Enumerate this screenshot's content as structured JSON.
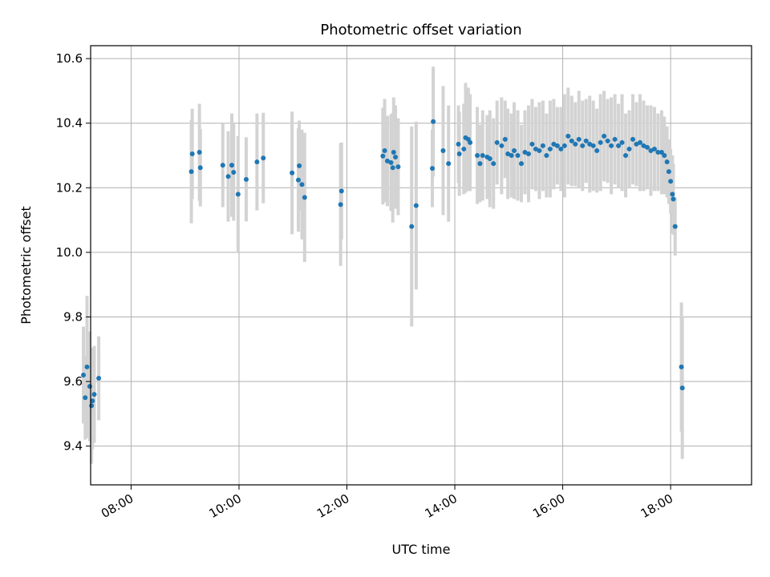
{
  "chart_data": {
    "type": "scatter",
    "title": "Photometric offset variation",
    "xlabel": "UTC time",
    "ylabel": "Photometric offset",
    "xlim": [
      "07:15",
      "19:30"
    ],
    "ylim": [
      9.28,
      10.64
    ],
    "x_ticks": [
      "08:00",
      "10:00",
      "12:00",
      "14:00",
      "16:00",
      "18:00"
    ],
    "y_ticks": [
      9.4,
      9.6,
      9.8,
      10.0,
      10.2,
      10.4,
      10.6
    ],
    "y_tick_labels": [
      "9.4",
      "9.6",
      "9.8",
      "10.0",
      "10.2",
      "10.4",
      "10.6"
    ],
    "grid": true,
    "point_color": "#1f77b4",
    "errorbar_color": "#d3d3d3",
    "series": [
      {
        "x": [
          "07:07",
          "07:09",
          "07:11",
          "07:14",
          "07:16",
          "07:17",
          "07:19",
          "07:24",
          "09:07",
          "09:08",
          "09:16",
          "09:17",
          "09:42",
          "09:48",
          "09:52",
          "09:54",
          "09:59",
          "10:08",
          "10:20",
          "10:27",
          "10:59",
          "11:06",
          "11:07",
          "11:10",
          "11:13",
          "11:53",
          "11:54",
          "12:40",
          "12:42",
          "12:45",
          "12:49",
          "12:51",
          "12:52",
          "12:54",
          "12:57",
          "13:12",
          "13:17",
          "13:35",
          "13:36",
          "13:47",
          "13:53",
          "14:04",
          "14:05",
          "14:10",
          "14:12",
          "14:15",
          "14:17",
          "14:25",
          "14:28",
          "14:31",
          "14:36",
          "14:39",
          "14:43",
          "14:47",
          "14:52",
          "14:56",
          "14:59",
          "15:03",
          "15:06",
          "15:10",
          "15:14",
          "15:18",
          "15:22",
          "15:26",
          "15:30",
          "15:34",
          "15:38",
          "15:42",
          "15:46",
          "15:50",
          "15:54",
          "15:58",
          "16:02",
          "16:06",
          "16:10",
          "16:14",
          "16:18",
          "16:22",
          "16:26",
          "16:30",
          "16:34",
          "16:38",
          "16:42",
          "16:46",
          "16:50",
          "16:54",
          "16:58",
          "17:02",
          "17:06",
          "17:10",
          "17:14",
          "17:18",
          "17:22",
          "17:26",
          "17:30",
          "17:34",
          "17:38",
          "17:42",
          "17:46",
          "17:50",
          "17:53",
          "17:56",
          "17:58",
          "18:00",
          "18:02",
          "18:03",
          "18:05",
          "18:12",
          "18:13"
        ],
        "y": [
          9.62,
          9.55,
          9.645,
          9.585,
          9.525,
          9.54,
          9.56,
          9.61,
          10.25,
          10.305,
          10.31,
          10.262,
          10.27,
          10.235,
          10.27,
          10.248,
          10.18,
          10.226,
          10.28,
          10.292,
          10.246,
          10.224,
          10.268,
          10.21,
          10.17,
          10.148,
          10.19,
          10.298,
          10.315,
          10.283,
          10.278,
          10.262,
          10.31,
          10.295,
          10.265,
          10.08,
          10.145,
          10.26,
          10.405,
          10.315,
          10.275,
          10.335,
          10.305,
          10.32,
          10.355,
          10.35,
          10.34,
          10.3,
          10.275,
          10.3,
          10.295,
          10.29,
          10.275,
          10.34,
          10.33,
          10.35,
          10.305,
          10.3,
          10.315,
          10.3,
          10.275,
          10.31,
          10.305,
          10.335,
          10.32,
          10.315,
          10.33,
          10.3,
          10.32,
          10.335,
          10.33,
          10.32,
          10.33,
          10.36,
          10.345,
          10.335,
          10.35,
          10.33,
          10.345,
          10.335,
          10.33,
          10.315,
          10.34,
          10.36,
          10.345,
          10.33,
          10.35,
          10.33,
          10.34,
          10.3,
          10.32,
          10.35,
          10.335,
          10.34,
          10.33,
          10.325,
          10.315,
          10.32,
          10.31,
          10.31,
          10.3,
          10.28,
          10.25,
          10.22,
          10.18,
          10.165,
          10.08,
          9.645,
          9.58
        ],
        "yerr": [
          0.15,
          0.13,
          0.22,
          0.17,
          0.18,
          0.15,
          0.15,
          0.13,
          0.16,
          0.14,
          0.15,
          0.12,
          0.13,
          0.14,
          0.16,
          0.15,
          0.18,
          0.13,
          0.15,
          0.14,
          0.19,
          0.16,
          0.14,
          0.17,
          0.2,
          0.19,
          0.15,
          0.15,
          0.16,
          0.14,
          0.15,
          0.17,
          0.17,
          0.16,
          0.15,
          0.31,
          0.26,
          0.12,
          0.17,
          0.2,
          0.18,
          0.12,
          0.13,
          0.14,
          0.17,
          0.16,
          0.15,
          0.15,
          0.12,
          0.14,
          0.13,
          0.15,
          0.14,
          0.13,
          0.15,
          0.12,
          0.14,
          0.13,
          0.15,
          0.14,
          0.12,
          0.13,
          0.15,
          0.14,
          0.13,
          0.15,
          0.14,
          0.13,
          0.15,
          0.14,
          0.12,
          0.13,
          0.16,
          0.15,
          0.14,
          0.13,
          0.15,
          0.14,
          0.13,
          0.15,
          0.14,
          0.13,
          0.15,
          0.14,
          0.13,
          0.15,
          0.14,
          0.13,
          0.15,
          0.13,
          0.12,
          0.14,
          0.13,
          0.15,
          0.14,
          0.13,
          0.14,
          0.13,
          0.12,
          0.13,
          0.12,
          0.11,
          0.1,
          0.1,
          0.12,
          0.11,
          0.09,
          0.2,
          0.22
        ]
      }
    ]
  }
}
